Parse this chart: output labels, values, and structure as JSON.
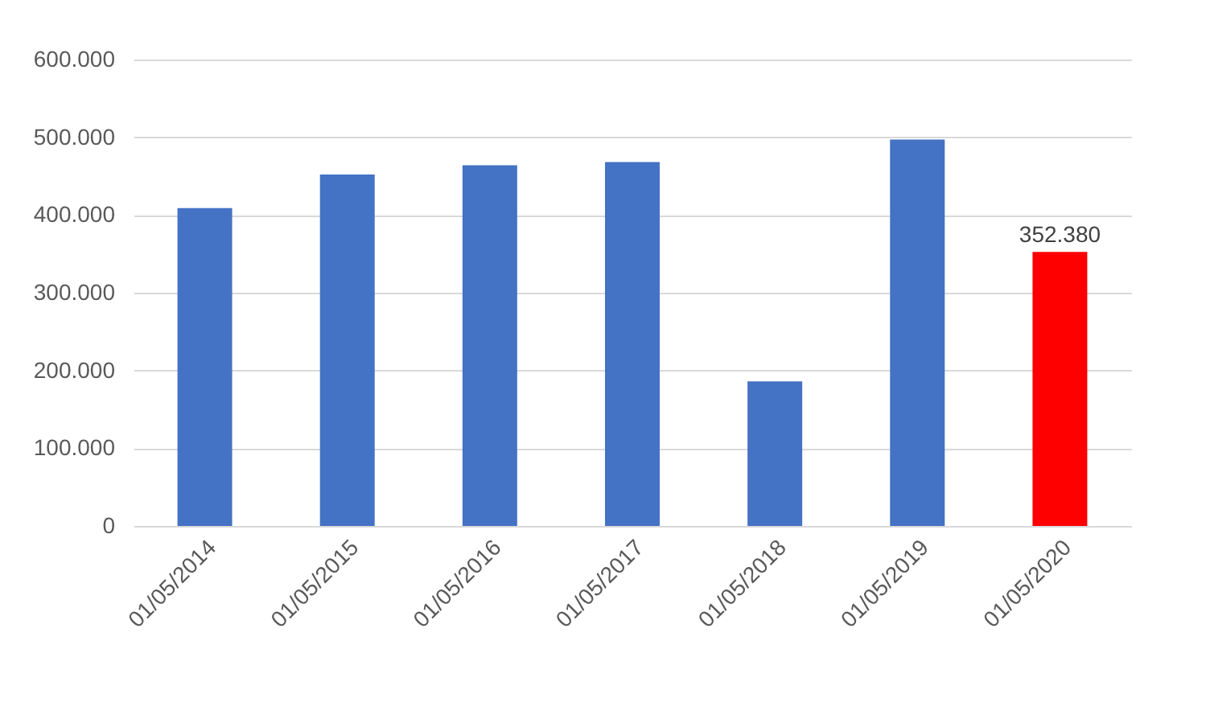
{
  "chart_data": {
    "type": "bar",
    "categories": [
      "01/05/2014",
      "01/05/2015",
      "01/05/2016",
      "01/05/2017",
      "01/05/2018",
      "01/05/2019",
      "01/05/2020"
    ],
    "values": [
      409000,
      452000,
      464000,
      468000,
      186000,
      497000,
      352380
    ],
    "colors": [
      "#4472c4",
      "#4472c4",
      "#4472c4",
      "#4472c4",
      "#4472c4",
      "#4472c4",
      "#ff0000"
    ],
    "value_labels": [
      null,
      null,
      null,
      null,
      null,
      null,
      "352.380"
    ],
    "ylim": [
      0,
      600000
    ],
    "yticks": [
      {
        "value": 0,
        "label": "0"
      },
      {
        "value": 100000,
        "label": "100.000"
      },
      {
        "value": 200000,
        "label": "200.000"
      },
      {
        "value": 300000,
        "label": "300.000"
      },
      {
        "value": 400000,
        "label": "400.000"
      },
      {
        "value": 500000,
        "label": "500.000"
      },
      {
        "value": 600000,
        "label": "600.000"
      }
    ],
    "grid": "y"
  }
}
